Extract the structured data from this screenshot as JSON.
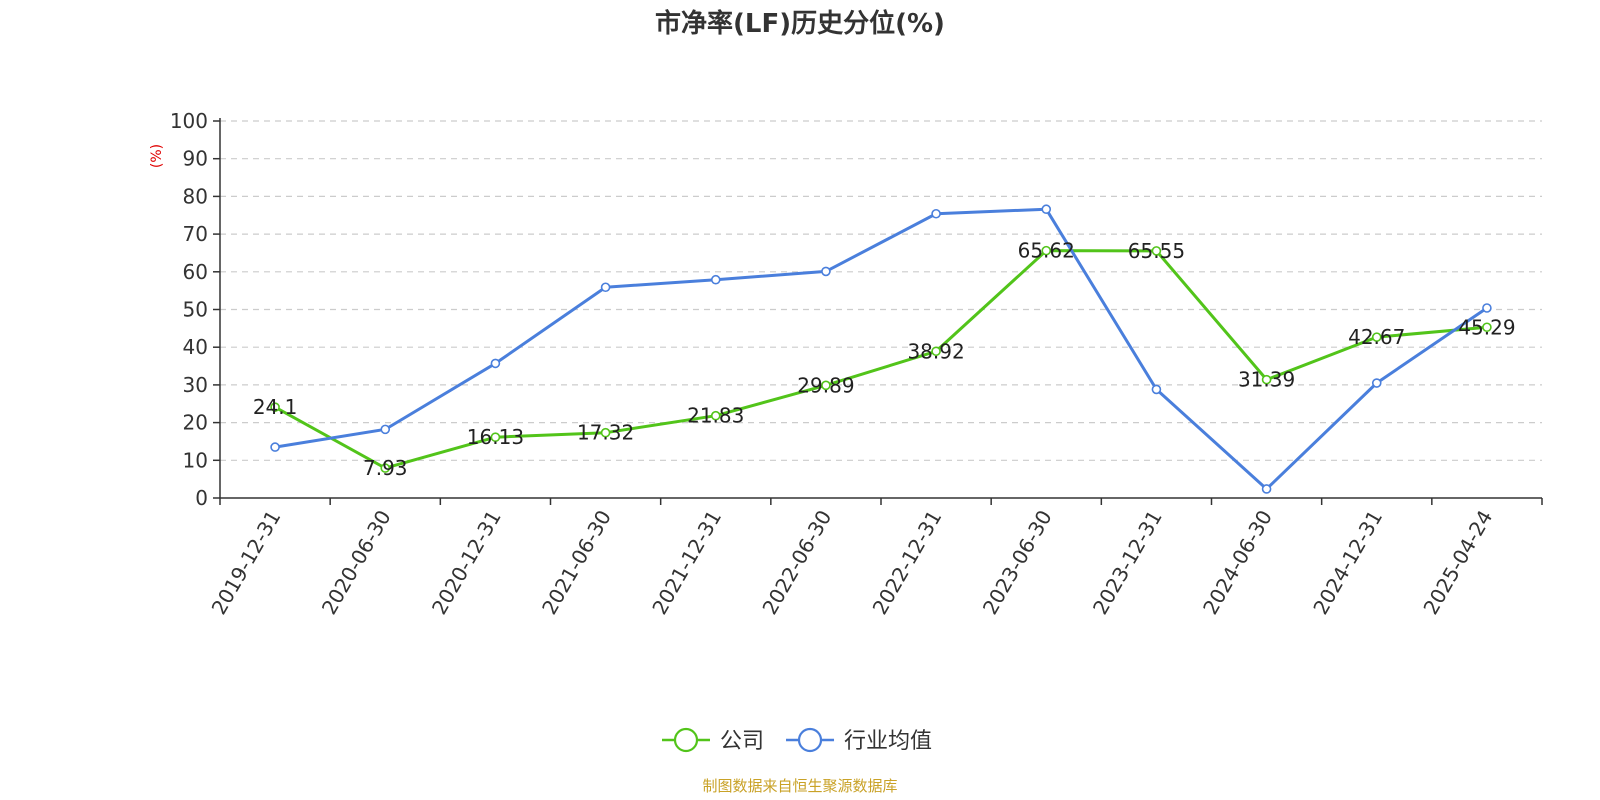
{
  "colors": {
    "company": "#52c41a",
    "industry": "#4a7fdc",
    "ylabel": "#e00000",
    "source": "#c9a227",
    "grid": "#cccccc",
    "axis": "#333333"
  },
  "chart_data": {
    "type": "line",
    "title": "市净率(LF)历史分位(%)",
    "ylabel": "(%)",
    "ylim": [
      0,
      100
    ],
    "yticks": [
      0,
      10,
      20,
      30,
      40,
      50,
      60,
      70,
      80,
      90,
      100
    ],
    "grid": true,
    "legend_position": "bottom-center",
    "categories": [
      "2019-12-31",
      "2020-06-30",
      "2020-12-31",
      "2021-06-30",
      "2021-12-31",
      "2022-06-30",
      "2022-12-31",
      "2023-06-30",
      "2023-12-31",
      "2024-06-30",
      "2024-12-31",
      "2025-04-24"
    ],
    "series": [
      {
        "name": "公司",
        "color_key": "company",
        "show_labels": true,
        "values": [
          24.1,
          7.93,
          16.13,
          17.32,
          21.83,
          29.89,
          38.92,
          65.62,
          65.55,
          31.39,
          42.67,
          45.29
        ],
        "labels": [
          "24.1",
          "7.93",
          "16.13",
          "17.32",
          "21.83",
          "29.89",
          "38.92",
          "65.62",
          "65.55",
          "31.39",
          "42.67",
          "45.29"
        ]
      },
      {
        "name": "行业均值",
        "color_key": "industry",
        "show_labels": false,
        "values": [
          13.5,
          18.2,
          35.7,
          55.9,
          57.9,
          60.1,
          75.4,
          76.6,
          28.8,
          2.4,
          30.5,
          50.4
        ]
      }
    ],
    "source": "制图数据来自恒生聚源数据库"
  }
}
